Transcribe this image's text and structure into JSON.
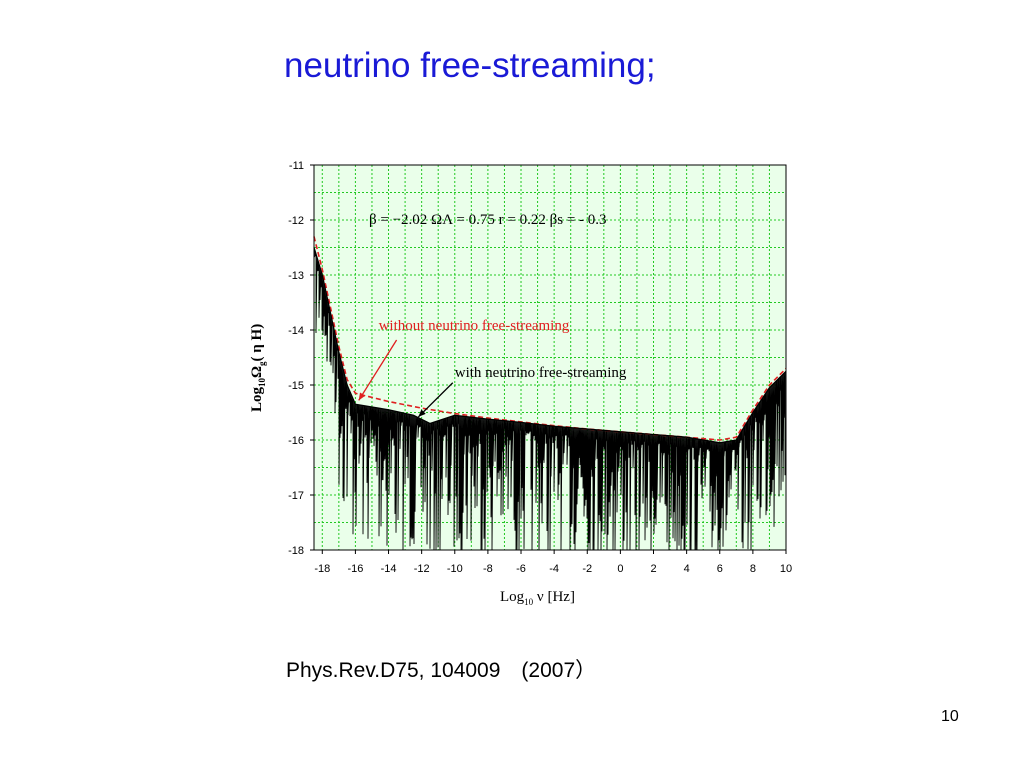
{
  "slide": {
    "title": "neutrino free-streaming;",
    "citation": "Phys.Rev.D75, 104009　(2007）",
    "page_number": "10"
  },
  "chart_data": {
    "type": "line",
    "xlabel_main": "Log",
    "xlabel_sub": "10",
    "xlabel_rest": " ν [Hz]",
    "ylabel_main": "Log",
    "ylabel_sub": "10",
    "ylabel_rest": "Ω",
    "ylabel_sub2": "g",
    "ylabel_tail": "( η H)",
    "xlim": [
      -18.5,
      10
    ],
    "ylim": [
      -18,
      -11
    ],
    "x_ticks": [
      -18,
      -16,
      -14,
      -12,
      -10,
      -8,
      -6,
      -4,
      -2,
      0,
      2,
      4,
      6,
      8,
      10
    ],
    "y_ticks": [
      -11,
      -12,
      -13,
      -14,
      -15,
      -16,
      -17,
      -18
    ],
    "grid": true,
    "grid_color": "#22c822",
    "plot_background": "#eaffea",
    "parameters_text": "β = −2.02     ΩΛ = 0.75     r = 0.22     βs = - 0.3",
    "series": [
      {
        "name": "without neutrino free-streaming",
        "color": "#e02020",
        "style": "dashed",
        "x": [
          -18.5,
          -18,
          -17.5,
          -17,
          -16.5,
          -16,
          -14,
          -12,
          -10,
          -8,
          -6,
          -4,
          -2,
          0,
          2,
          4,
          6,
          7,
          8,
          9,
          10
        ],
        "y": [
          -12.3,
          -12.9,
          -13.6,
          -14.3,
          -14.9,
          -15.15,
          -15.3,
          -15.42,
          -15.52,
          -15.6,
          -15.67,
          -15.74,
          -15.8,
          -15.85,
          -15.9,
          -15.95,
          -16.0,
          -15.95,
          -15.45,
          -15.0,
          -14.7
        ]
      },
      {
        "name": "with neutrino free-streaming",
        "color": "#000000",
        "style": "solid",
        "x": [
          -18.5,
          -18,
          -17.5,
          -17,
          -16.5,
          -16,
          -14,
          -12.5,
          -11.5,
          -10,
          -8,
          -6,
          -4,
          -2,
          0,
          2,
          4,
          6,
          7,
          8,
          9,
          10
        ],
        "y": [
          -12.5,
          -13.0,
          -13.7,
          -14.4,
          -15.0,
          -15.35,
          -15.45,
          -15.55,
          -15.7,
          -15.55,
          -15.62,
          -15.68,
          -15.75,
          -15.8,
          -15.85,
          -15.9,
          -15.95,
          -16.05,
          -16.0,
          -15.5,
          -15.05,
          -14.75
        ]
      }
    ],
    "annotations": [
      {
        "text": "without neutrino free-streaming",
        "color": "#e02020",
        "x": -14.6,
        "y": -14.0,
        "arrow_to": [
          -15.8,
          -15.28
        ]
      },
      {
        "text": "with neutrino free-streaming",
        "color": "#000000",
        "x": -10.0,
        "y": -14.85,
        "arrow_to": [
          -12.2,
          -15.58
        ]
      }
    ]
  }
}
